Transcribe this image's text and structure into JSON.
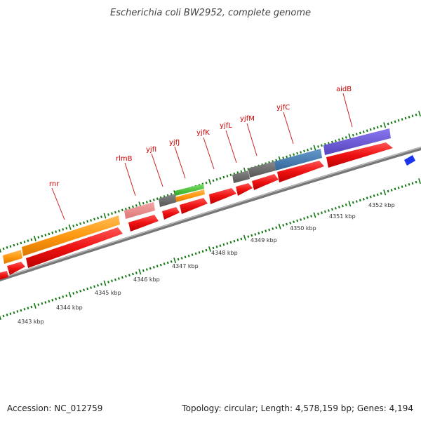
{
  "title": "Escherichia coli BW2952, complete genome",
  "footer": {
    "accession": "Accession: NC_012759",
    "info": "Topology: circular; Length: 4,578,159 bp; Genes: 4,194"
  },
  "colors": {
    "cds": "#ee1111",
    "rrna_orange": "#ff9910",
    "pink": "#ee8888",
    "gray": "#666666",
    "green": "#44bb33",
    "blue": "#4477aa",
    "purple": "#6655cc",
    "misc_blue": "#1122dd",
    "tick": "#117711",
    "label": "#cc0000",
    "backbone": "#888888"
  },
  "gene_labels": [
    {
      "name": "rnr"
    },
    {
      "name": "rlmB"
    },
    {
      "name": "yjfI"
    },
    {
      "name": "yjfJ"
    },
    {
      "name": "yjfK"
    },
    {
      "name": "yjfL"
    },
    {
      "name": "yjfM"
    },
    {
      "name": "yjfC"
    },
    {
      "name": "aidB"
    }
  ],
  "kbp_ticks": [
    {
      "label": "4343 kbp"
    },
    {
      "label": "4344 kbp"
    },
    {
      "label": "4345 kbp"
    },
    {
      "label": "4346 kbp"
    },
    {
      "label": "4347 kbp"
    },
    {
      "label": "4348 kbp"
    },
    {
      "label": "4349 kbp"
    },
    {
      "label": "4350 kbp"
    },
    {
      "label": "4351 kbp"
    },
    {
      "label": "4352 kbp"
    }
  ]
}
